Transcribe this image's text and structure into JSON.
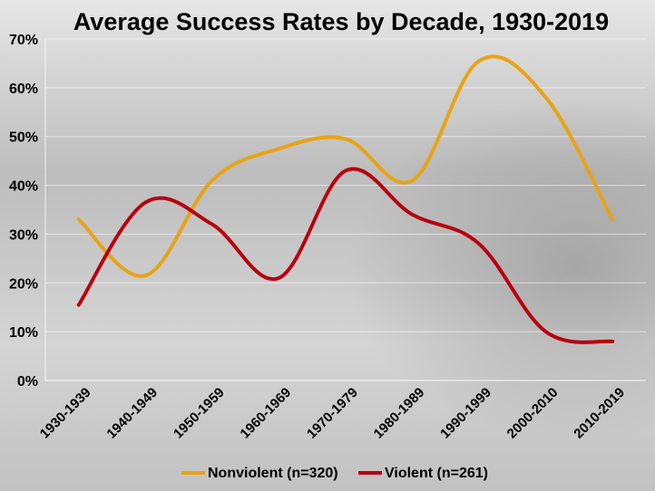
{
  "chart_data": {
    "type": "line",
    "title": "Average Success Rates by Decade, 1930-2019",
    "xlabel": "",
    "ylabel": "",
    "ylim": [
      0,
      70
    ],
    "y_ticks": [
      "0%",
      "10%",
      "20%",
      "30%",
      "40%",
      "50%",
      "60%",
      "70%"
    ],
    "categories": [
      "1930-1939",
      "1940-1949",
      "1950-1959",
      "1960-1969",
      "1970-1979",
      "1980-1989",
      "1990-1999",
      "2000-2010",
      "2010-2019"
    ],
    "series": [
      {
        "name": "Nonviolent (n=320)",
        "color": "#E8A317",
        "values": [
          33,
          21.5,
          41,
          47.5,
          49.5,
          41,
          65.5,
          58,
          33
        ]
      },
      {
        "name": "Violent (n=261)",
        "color": "#B8000F",
        "values": [
          15.5,
          36.5,
          32,
          21,
          43,
          34,
          28,
          10,
          8
        ]
      }
    ],
    "grid": true,
    "legend": "bottom"
  }
}
